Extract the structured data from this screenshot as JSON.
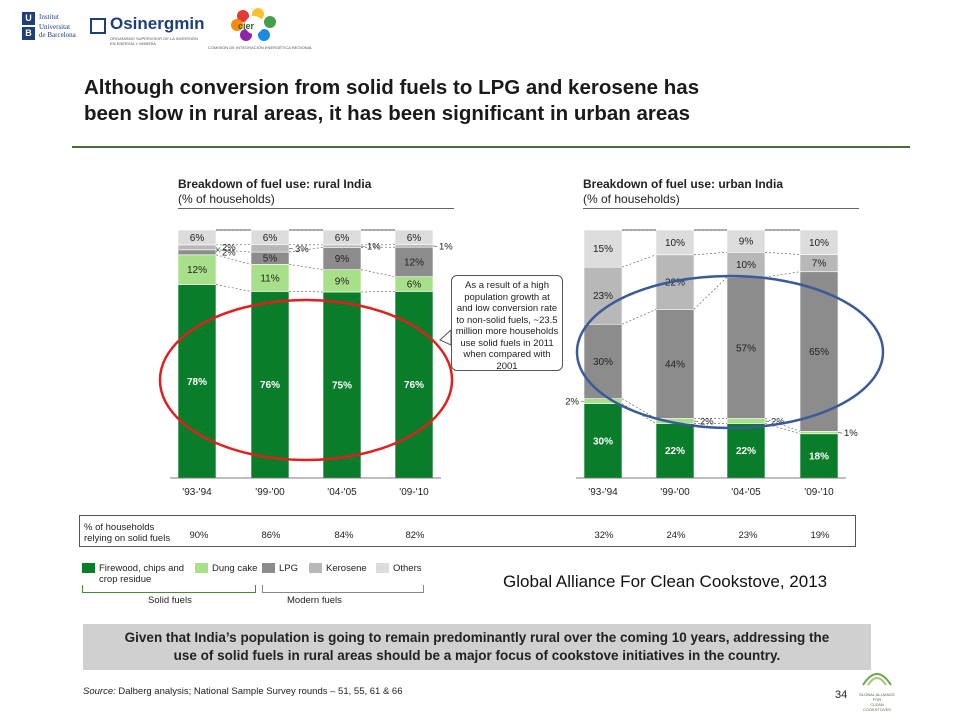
{
  "logos": {
    "ub_letters": [
      "U",
      "B"
    ],
    "ub_lines": [
      "Institut",
      "Universitat",
      "de Barcelona"
    ],
    "osinergmin_name": "Osinergmin",
    "osinergmin_sub": "ORGANISMO SUPERVISOR DE LA INVERSIÓN EN ENERGÍA Y MINERÍA",
    "cier_word": "cier",
    "cier_sub": "COMISIÓN DE INTEGRACIÓN ENERGÉTICA REGIONAL",
    "gacc_lines": [
      "GLOBAL ALLIANCE FOR",
      "CLEAN COOKSTOVES"
    ]
  },
  "title_line1": "Although conversion from solid fuels to LPG and kerosene has",
  "title_line2": "been slow in rural areas, it has been significant in urban areas",
  "rural": {
    "title": "Breakdown of fuel use: rural India",
    "subtitle": "(% of households)"
  },
  "urban": {
    "title": "Breakdown of fuel use: urban India",
    "subtitle": "(% of households)"
  },
  "callout_lines": [
    "As a result of a high",
    "population growth at",
    "and low conversion rate",
    "to non-solid fuels, ~23.5",
    "million more households",
    "use solid fuels in 2011",
    "when compared with",
    "2001"
  ],
  "households": {
    "label_line1": "% of households",
    "label_line2": "relying on solid fuels",
    "values": [
      "90%",
      "86%",
      "84%",
      "82%",
      "32%",
      "24%",
      "23%",
      "19%"
    ]
  },
  "legend": {
    "items": [
      {
        "name": "Firewood, chips and crop residue",
        "lines": [
          "Firewood, chips and",
          "crop residue"
        ],
        "color": "#0a7d2a"
      },
      {
        "name": "Dung cake",
        "lines": [
          "Dung cake"
        ],
        "color": "#a8e08a"
      },
      {
        "name": "LPG",
        "lines": [
          "LPG"
        ],
        "color": "#8c8c8c"
      },
      {
        "name": "Kerosene",
        "lines": [
          "Kerosene"
        ],
        "color": "#b8b8b8"
      },
      {
        "name": "Others",
        "lines": [
          "Others"
        ],
        "color": "#dcdcdc"
      }
    ],
    "group_solid": "Solid fuels",
    "group_modern": "Modern fuels"
  },
  "citation": "Global Alliance For Clean Cookstove, 2013",
  "banner_line1": "Given that India’s population is going to remain predominantly rural over the coming 10 years, addressing the",
  "banner_line2": "use of solid fuels in rural areas should be a major focus of cookstove initiatives in the country.",
  "source_label": "Source:",
  "source_text": "Dalberg analysis; National Sample Survey rounds – 51, 55, 61 & 66",
  "page_number": "34",
  "chart_data": [
    {
      "type": "bar",
      "stacked": true,
      "title": "Breakdown of fuel use: rural India",
      "subtitle": "(% of households)",
      "categories": [
        "'93-'94",
        "'99-'00",
        "'04-'05",
        "'09-'10"
      ],
      "series": [
        {
          "name": "Firewood, chips and crop residue",
          "values": [
            78,
            76,
            75,
            76
          ],
          "labels": [
            "78%",
            "76%",
            "75%",
            "76%"
          ]
        },
        {
          "name": "Dung cake",
          "values": [
            12,
            11,
            9,
            6
          ],
          "labels": [
            "12%",
            "11%",
            "9%",
            "6%"
          ]
        },
        {
          "name": "LPG",
          "values": [
            2,
            5,
            9,
            12
          ],
          "labels": [
            "2%",
            "5%",
            "9%",
            "12%"
          ]
        },
        {
          "name": "Kerosene",
          "values": [
            2,
            3,
            1,
            1
          ],
          "labels": [
            "2%",
            "3%",
            "1%",
            "1%"
          ]
        },
        {
          "name": "Others",
          "values": [
            6,
            6,
            6,
            6
          ],
          "labels": [
            "6%",
            "6%",
            "6%",
            "6%"
          ]
        }
      ],
      "ylim": [
        0,
        100
      ],
      "highlight": "red ellipse around firewood segments"
    },
    {
      "type": "bar",
      "stacked": true,
      "title": "Breakdown of fuel use: urban India",
      "subtitle": "(% of households)",
      "categories": [
        "'93-'94",
        "'99-'00",
        "'04-'05",
        "'09-'10"
      ],
      "series": [
        {
          "name": "Firewood, chips and crop residue",
          "values": [
            30,
            22,
            22,
            18
          ],
          "labels": [
            "30%",
            "22%",
            "22%",
            "18%"
          ]
        },
        {
          "name": "Dung cake",
          "values": [
            2,
            2,
            2,
            1
          ],
          "labels": [
            "2%",
            "2%",
            "2%",
            "1%"
          ]
        },
        {
          "name": "LPG",
          "values": [
            30,
            44,
            57,
            65
          ],
          "labels": [
            "30%",
            "44%",
            "57%",
            "65%"
          ]
        },
        {
          "name": "Kerosene",
          "values": [
            23,
            22,
            10,
            7
          ],
          "labels": [
            "23%",
            "22%",
            "10%",
            "7%"
          ]
        },
        {
          "name": "Others",
          "values": [
            15,
            10,
            9,
            10
          ],
          "labels": [
            "15%",
            "10%",
            "9%",
            "10%"
          ]
        }
      ],
      "ylim": [
        0,
        100
      ],
      "highlight": "blue ellipse around LPG segments"
    }
  ]
}
